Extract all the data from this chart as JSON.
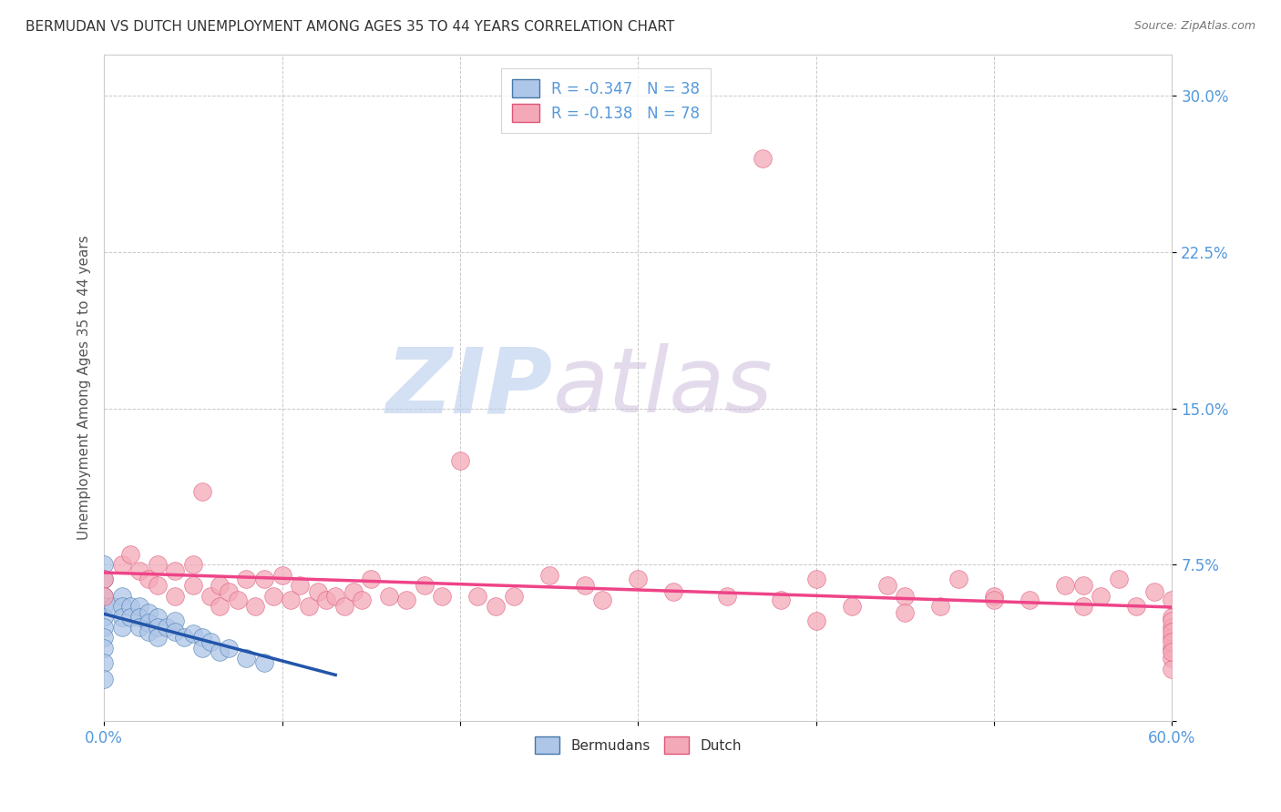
{
  "title": "BERMUDAN VS DUTCH UNEMPLOYMENT AMONG AGES 35 TO 44 YEARS CORRELATION CHART",
  "source": "Source: ZipAtlas.com",
  "ylabel": "Unemployment Among Ages 35 to 44 years",
  "xlim": [
    0.0,
    0.6
  ],
  "ylim": [
    0.0,
    0.32
  ],
  "x_ticks": [
    0.0,
    0.1,
    0.2,
    0.3,
    0.4,
    0.5,
    0.6
  ],
  "x_tick_labels": [
    "0.0%",
    "",
    "",
    "",
    "",
    "",
    "60.0%"
  ],
  "y_ticks": [
    0.0,
    0.075,
    0.15,
    0.225,
    0.3
  ],
  "y_tick_labels": [
    "",
    "7.5%",
    "15.0%",
    "22.5%",
    "30.0%"
  ],
  "bermuda_color": "#aec6e8",
  "dutch_color": "#f4a9b8",
  "bermuda_edge_color": "#4477aa",
  "dutch_edge_color": "#dd5577",
  "bermuda_line_color": "#2255aa",
  "dutch_line_color": "#ee4488",
  "watermark_zip_color": "#c8d8f0",
  "watermark_atlas_color": "#d8c8e0",
  "grid_color": "#bbbbbb",
  "title_color": "#333333",
  "axis_tick_color": "#5599dd",
  "legend_text_color": "#5599dd",
  "R_bermuda": -0.347,
  "N_bermuda": 38,
  "R_dutch": -0.138,
  "N_dutch": 78,
  "bermuda_x": [
    0.0,
    0.0,
    0.0,
    0.0,
    0.0,
    0.0,
    0.0,
    0.0,
    0.0,
    0.0,
    0.005,
    0.01,
    0.01,
    0.01,
    0.01,
    0.015,
    0.015,
    0.02,
    0.02,
    0.02,
    0.025,
    0.025,
    0.025,
    0.03,
    0.03,
    0.03,
    0.035,
    0.04,
    0.04,
    0.045,
    0.05,
    0.055,
    0.055,
    0.06,
    0.065,
    0.07,
    0.08,
    0.09
  ],
  "bermuda_y": [
    0.075,
    0.068,
    0.06,
    0.055,
    0.05,
    0.045,
    0.04,
    0.035,
    0.028,
    0.02,
    0.055,
    0.06,
    0.055,
    0.05,
    0.045,
    0.055,
    0.05,
    0.055,
    0.05,
    0.045,
    0.052,
    0.047,
    0.043,
    0.05,
    0.045,
    0.04,
    0.045,
    0.048,
    0.043,
    0.04,
    0.042,
    0.04,
    0.035,
    0.038,
    0.033,
    0.035,
    0.03,
    0.028
  ],
  "dutch_x": [
    0.0,
    0.0,
    0.01,
    0.015,
    0.02,
    0.025,
    0.03,
    0.03,
    0.04,
    0.04,
    0.05,
    0.05,
    0.055,
    0.06,
    0.065,
    0.065,
    0.07,
    0.075,
    0.08,
    0.085,
    0.09,
    0.095,
    0.1,
    0.105,
    0.11,
    0.115,
    0.12,
    0.125,
    0.13,
    0.135,
    0.14,
    0.145,
    0.15,
    0.16,
    0.17,
    0.18,
    0.19,
    0.2,
    0.21,
    0.22,
    0.23,
    0.25,
    0.27,
    0.28,
    0.3,
    0.32,
    0.35,
    0.37,
    0.38,
    0.4,
    0.42,
    0.44,
    0.45,
    0.47,
    0.48,
    0.5,
    0.52,
    0.54,
    0.55,
    0.56,
    0.57,
    0.58,
    0.59,
    0.6,
    0.6,
    0.6,
    0.6,
    0.6,
    0.6,
    0.6,
    0.6,
    0.6,
    0.6,
    0.6,
    0.55,
    0.5,
    0.45,
    0.4
  ],
  "dutch_y": [
    0.068,
    0.06,
    0.075,
    0.08,
    0.072,
    0.068,
    0.075,
    0.065,
    0.072,
    0.06,
    0.075,
    0.065,
    0.11,
    0.06,
    0.065,
    0.055,
    0.062,
    0.058,
    0.068,
    0.055,
    0.068,
    0.06,
    0.07,
    0.058,
    0.065,
    0.055,
    0.062,
    0.058,
    0.06,
    0.055,
    0.062,
    0.058,
    0.068,
    0.06,
    0.058,
    0.065,
    0.06,
    0.125,
    0.06,
    0.055,
    0.06,
    0.07,
    0.065,
    0.058,
    0.068,
    0.062,
    0.06,
    0.27,
    0.058,
    0.068,
    0.055,
    0.065,
    0.06,
    0.055,
    0.068,
    0.06,
    0.058,
    0.065,
    0.055,
    0.06,
    0.068,
    0.055,
    0.062,
    0.058,
    0.05,
    0.045,
    0.04,
    0.035,
    0.03,
    0.025,
    0.048,
    0.043,
    0.038,
    0.033,
    0.065,
    0.058,
    0.052,
    0.048
  ]
}
